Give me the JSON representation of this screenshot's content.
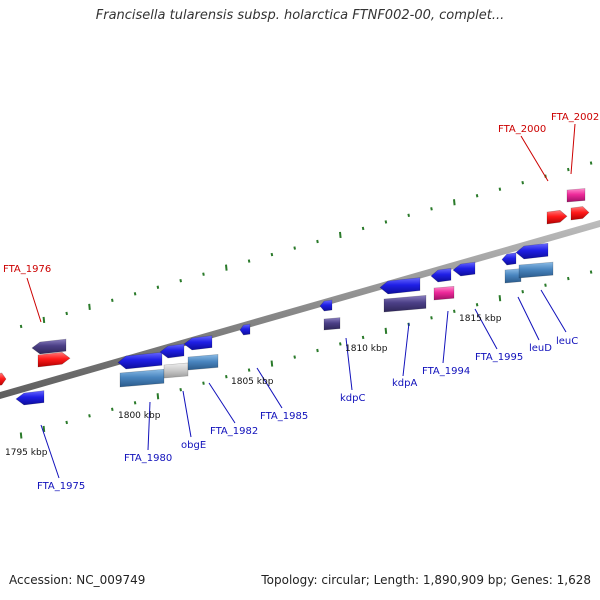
{
  "title": "Francisella tularensis subsp. holarctica FTNF002-00, complet...",
  "footer": {
    "accession": "Accession: NC_009749",
    "summary": "Topology: circular; Length: 1,890,909 bp; Genes: 1,628"
  },
  "colors": {
    "backbone": "#8a8a8a",
    "tick_marks": "#2a7a2a",
    "blue_gene": "#1f1fe6",
    "dark_purple_gene": "#4b3f86",
    "red_gene": "#ff1a1a",
    "pink_gene": "#ee2a9a",
    "steel_gene": "#4a86c0",
    "gray_gene": "#c8c8c8",
    "red_label": "#cc0000",
    "blue_label": "#1111bb"
  },
  "ticks": [
    {
      "label": "1795 kbp"
    },
    {
      "label": "1800 kbp"
    },
    {
      "label": "1805 kbp"
    },
    {
      "label": "1810 kbp"
    },
    {
      "label": "1815 kbp"
    }
  ],
  "labels": [
    {
      "text": "FTA_1976",
      "color": "red"
    },
    {
      "text": "FTA_2000",
      "color": "red"
    },
    {
      "text": "FTA_2002",
      "color": "red"
    },
    {
      "text": "FTA_1975",
      "color": "blue"
    },
    {
      "text": "FTA_1980",
      "color": "blue"
    },
    {
      "text": "obgE",
      "color": "blue"
    },
    {
      "text": "FTA_1982",
      "color": "blue"
    },
    {
      "text": "FTA_1985",
      "color": "blue"
    },
    {
      "text": "kdpC",
      "color": "blue"
    },
    {
      "text": "kdpA",
      "color": "blue"
    },
    {
      "text": "FTA_1994",
      "color": "blue"
    },
    {
      "text": "FTA_1995",
      "color": "blue"
    },
    {
      "text": "leuD",
      "color": "blue"
    },
    {
      "text": "leuC",
      "color": "blue"
    }
  ]
}
